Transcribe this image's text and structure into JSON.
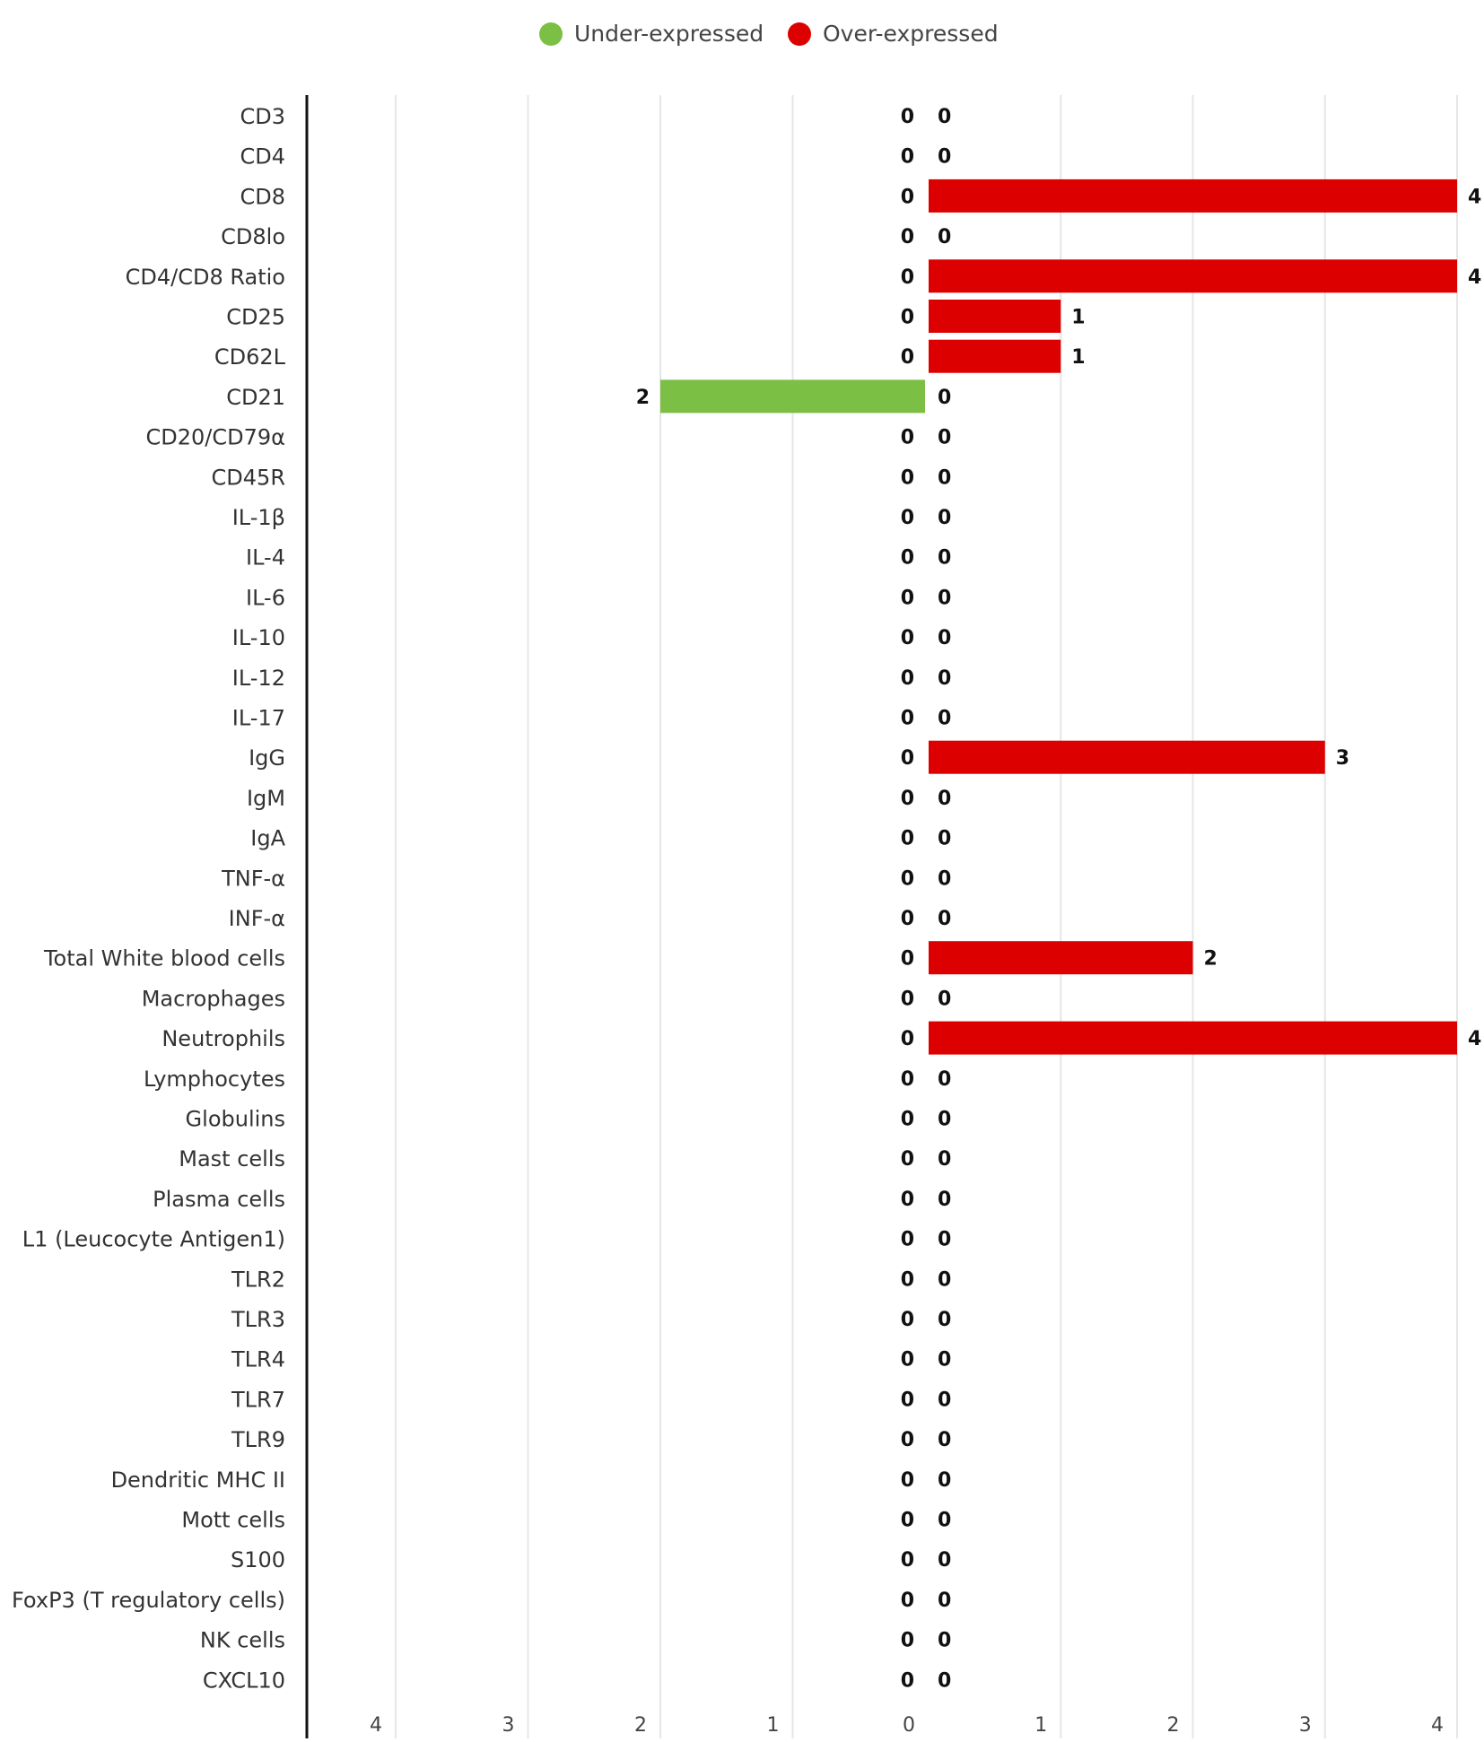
{
  "chart_data": {
    "type": "bar",
    "orientation": "horizontal-diverging",
    "title": "",
    "xlabel": "",
    "ylabel": "",
    "xlim": [
      -4,
      4
    ],
    "x_ticks": [
      -4,
      -3,
      -2,
      -1,
      0,
      1,
      2,
      3,
      4
    ],
    "x_tick_labels": [
      "4",
      "3",
      "2",
      "1",
      "0",
      "1",
      "2",
      "3",
      "4"
    ],
    "grid": true,
    "legend_position": "top-center",
    "categories": [
      "CD3",
      "CD4",
      "CD8",
      "CD8lo",
      "CD4/CD8 Ratio",
      "CD25",
      "CD62L",
      "CD21",
      "CD20/CD79α",
      "CD45R",
      "IL-1β",
      "IL-4",
      "IL-6",
      "IL-10",
      "IL-12",
      "IL-17",
      "IgG",
      "IgM",
      "IgA",
      "TNF-α",
      "INF-α",
      "Total White blood cells",
      "Macrophages",
      "Neutrophils",
      "Lymphocytes",
      "Globulins",
      "Mast cells",
      "Plasma cells",
      "L1 (Leucocyte Antigen1)",
      "TLR2",
      "TLR3",
      "TLR4",
      "TLR7",
      "TLR9",
      "Dendritic MHC II",
      "Mott cells",
      "S100",
      "FoxP3 (T regulatory cells)",
      "NK cells",
      "CXCL10"
    ],
    "series": [
      {
        "name": "Under-expressed",
        "color": "#7cbf45",
        "direction": "left",
        "values": [
          0,
          0,
          0,
          0,
          0,
          0,
          0,
          2,
          0,
          0,
          0,
          0,
          0,
          0,
          0,
          0,
          0,
          0,
          0,
          0,
          0,
          0,
          0,
          0,
          0,
          0,
          0,
          0,
          0,
          0,
          0,
          0,
          0,
          0,
          0,
          0,
          0,
          0,
          0,
          0
        ]
      },
      {
        "name": "Over-expressed",
        "color": "#dd0000",
        "direction": "right",
        "values": [
          0,
          0,
          4,
          0,
          4,
          1,
          1,
          0,
          0,
          0,
          0,
          0,
          0,
          0,
          0,
          0,
          3,
          0,
          0,
          0,
          0,
          2,
          0,
          4,
          0,
          0,
          0,
          0,
          0,
          0,
          0,
          0,
          0,
          0,
          0,
          0,
          0,
          0,
          0,
          0
        ]
      }
    ]
  }
}
